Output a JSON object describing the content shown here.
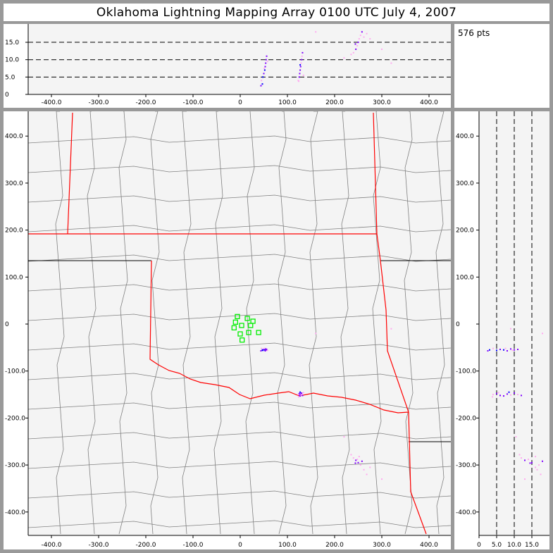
{
  "title": "Oklahoma Lightning Mapping Array   0100 UTC  July 4, 2007",
  "point_count": "576 pts",
  "colors": {
    "background_plot": "#f4f4f4",
    "state_border": "#ff0000",
    "county_line": "#808080",
    "station": "#00ee00",
    "recent": "#0000ff",
    "mid": "#8000ff",
    "old": "#ffaaf0"
  },
  "axes": {
    "x_km_ticks": [
      "-400.0",
      "-300.0",
      "-200.0",
      "-100.0",
      "0",
      "100.0",
      "200.0",
      "300.0",
      "400.0"
    ],
    "y_km_ticks": [
      "400.0",
      "300.0",
      "200.0",
      "100.0",
      "0",
      "-100.0",
      "-200.0",
      "-300.0",
      "-400.0"
    ],
    "alt_ticks": [
      "0",
      "5.0",
      "10.0",
      "15.0"
    ],
    "xy_range_km": [
      -450,
      450
    ],
    "alt_range_km": [
      0,
      20
    ],
    "alt_dashed_lines_km": [
      5,
      10,
      15
    ]
  },
  "stations_km": [
    [
      -6,
      16
    ],
    [
      15,
      12
    ],
    [
      27,
      6
    ],
    [
      -10,
      4
    ],
    [
      3,
      -3
    ],
    [
      -13,
      -8
    ],
    [
      22,
      -3
    ],
    [
      39,
      -18
    ],
    [
      18,
      -18
    ],
    [
      0,
      -21
    ],
    [
      4,
      -34
    ]
  ],
  "lightning_sources": [
    {
      "x": 47,
      "y": -55,
      "alt": 3,
      "c": "recent"
    },
    {
      "x": 48,
      "y": -56,
      "alt": 5,
      "c": "recent"
    },
    {
      "x": 50,
      "y": -54,
      "alt": 6,
      "c": "mid"
    },
    {
      "x": 52,
      "y": -55,
      "alt": 7,
      "c": "recent"
    },
    {
      "x": 53,
      "y": -57,
      "alt": 8,
      "c": "mid"
    },
    {
      "x": 54,
      "y": -53,
      "alt": 9,
      "c": "mid"
    },
    {
      "x": 55,
      "y": -55,
      "alt": 10,
      "c": "mid"
    },
    {
      "x": 56,
      "y": -54,
      "alt": 11,
      "c": "mid"
    },
    {
      "x": 45,
      "y": -52,
      "alt": 4,
      "c": "old"
    },
    {
      "x": 58,
      "y": -56,
      "alt": 9.5,
      "c": "old"
    },
    {
      "x": 44,
      "y": -57,
      "alt": 2.5,
      "c": "mid"
    },
    {
      "x": 51,
      "y": -52,
      "alt": 7.5,
      "c": "old"
    },
    {
      "x": 123,
      "y": -150,
      "alt": 4,
      "c": "old"
    },
    {
      "x": 125,
      "y": -148,
      "alt": 5,
      "c": "mid"
    },
    {
      "x": 126,
      "y": -152,
      "alt": 6,
      "c": "mid"
    },
    {
      "x": 127,
      "y": -153,
      "alt": 7,
      "c": "mid"
    },
    {
      "x": 128,
      "y": -149,
      "alt": 8,
      "c": "mid"
    },
    {
      "x": 129,
      "y": -151,
      "alt": 9,
      "c": "old"
    },
    {
      "x": 130,
      "y": -147,
      "alt": 10,
      "c": "mid"
    },
    {
      "x": 131,
      "y": -150,
      "alt": 11,
      "c": "old"
    },
    {
      "x": 132,
      "y": -152,
      "alt": 12,
      "c": "mid"
    },
    {
      "x": 124,
      "y": -155,
      "alt": 3.8,
      "c": "old"
    },
    {
      "x": 134,
      "y": -146,
      "alt": 5.5,
      "c": "old"
    },
    {
      "x": 127,
      "y": -145,
      "alt": 8.5,
      "c": "recent"
    },
    {
      "x": 240,
      "y": -285,
      "alt": 12,
      "c": "old"
    },
    {
      "x": 245,
      "y": -290,
      "alt": 13,
      "c": "mid"
    },
    {
      "x": 248,
      "y": -288,
      "alt": 14,
      "c": "old"
    },
    {
      "x": 250,
      "y": -295,
      "alt": 15,
      "c": "mid"
    },
    {
      "x": 252,
      "y": -282,
      "alt": 16,
      "c": "old"
    },
    {
      "x": 255,
      "y": -300,
      "alt": 17,
      "c": "old"
    },
    {
      "x": 258,
      "y": -292,
      "alt": 18,
      "c": "mid"
    },
    {
      "x": 262,
      "y": -310,
      "alt": 16.5,
      "c": "old"
    },
    {
      "x": 235,
      "y": -278,
      "alt": 11.5,
      "c": "old"
    },
    {
      "x": 268,
      "y": -320,
      "alt": 17.5,
      "c": "old"
    },
    {
      "x": 244,
      "y": -296,
      "alt": 14.5,
      "c": "mid"
    },
    {
      "x": 275,
      "y": -305,
      "alt": 16,
      "c": "old"
    },
    {
      "x": 220,
      "y": -240,
      "alt": 10.5,
      "c": "old"
    },
    {
      "x": 300,
      "y": -330,
      "alt": 13,
      "c": "old"
    },
    {
      "x": 160,
      "y": -20,
      "alt": 18,
      "c": "old"
    },
    {
      "x": 320,
      "y": -10,
      "alt": 9,
      "c": "old"
    }
  ]
}
